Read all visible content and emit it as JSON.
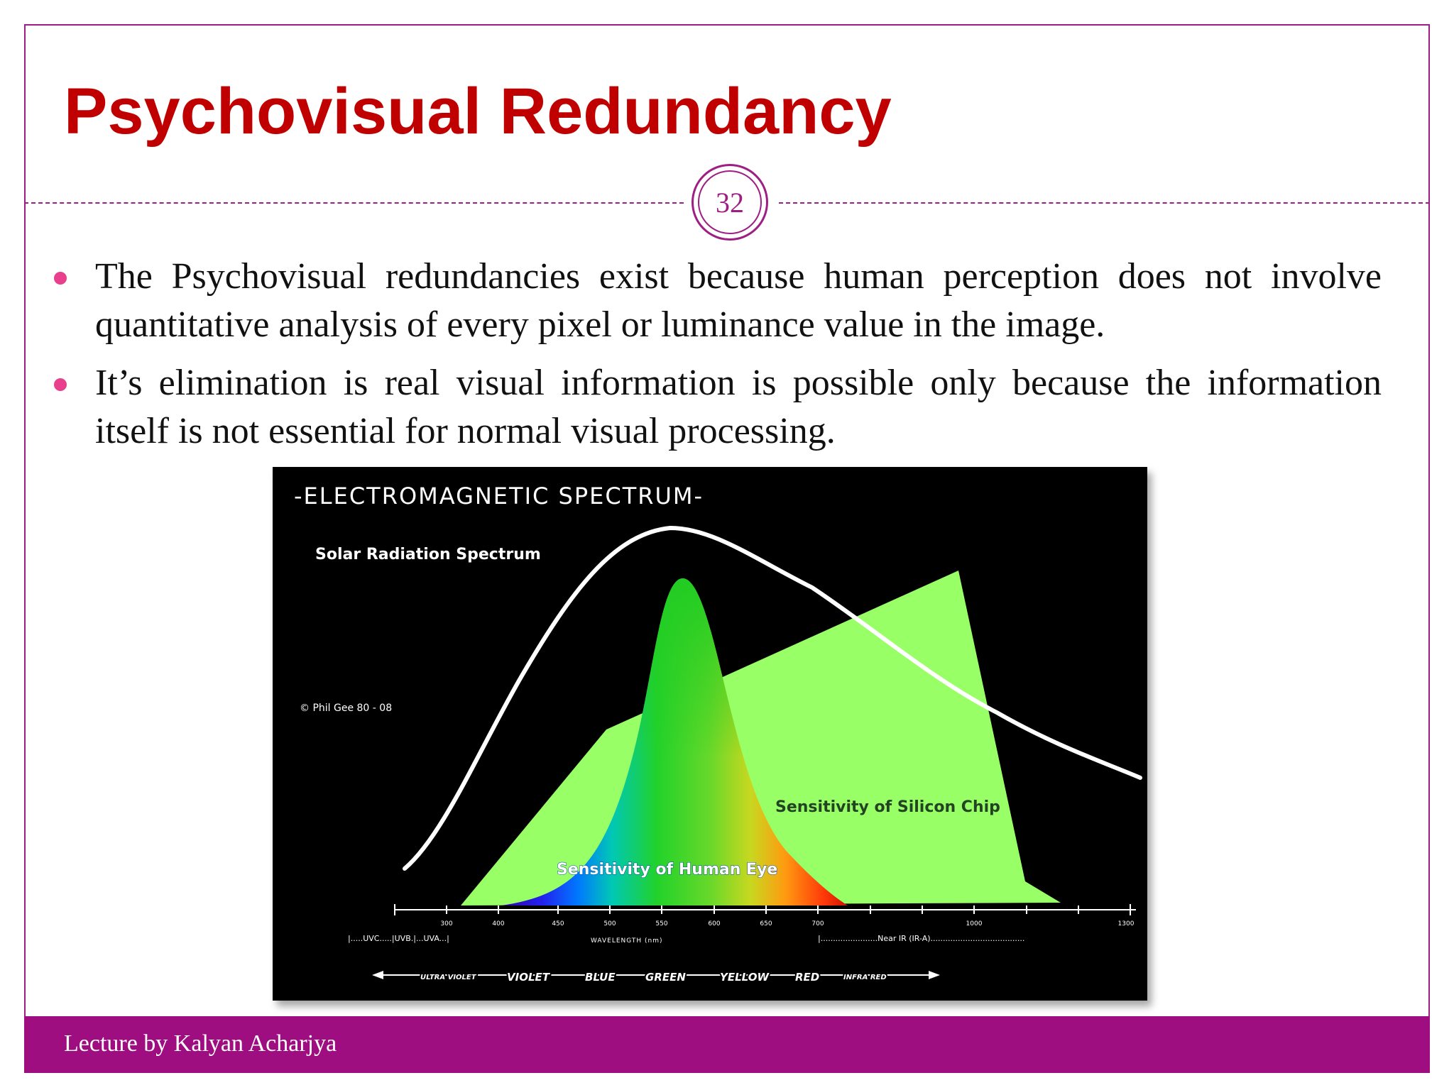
{
  "slide": {
    "title": "Psychovisual Redundancy",
    "page_number": "32",
    "bullets": [
      "The Psychovisual redundancies exist because human perception does not involve quantitative analysis of every pixel or luminance value in the image.",
      "It’s elimination is real visual information is possible only because the information itself is not essential for normal visual processing."
    ],
    "footer": "Lecture by Kalyan Acharjya"
  },
  "figure": {
    "title": "-ELECTROMAGNETIC SPECTRUM-",
    "solar_label": "Solar Radiation Spectrum",
    "copyright": "© Phil Gee 80 - 08",
    "silicon_label": "Sensitivity of Silicon Chip",
    "eye_label": "Sensitivity of Human Eye",
    "tick_labels": [
      "300",
      "400",
      "450",
      "500",
      "550",
      "600",
      "650",
      "700",
      "1000",
      "1300"
    ],
    "axis_label": "WAVELENGTH (nm)",
    "uv_bands": "|.....UVC.....|UVB.|...UVA...|",
    "near_ir": "|.......................Near IR (IR-A)......................................",
    "color_bands": [
      "ULTRA VIOLET",
      "VIOLET",
      "BLUE",
      "GREEN",
      "YELLOW",
      "RED",
      "INFRA RED"
    ],
    "colors": {
      "background": "#000000",
      "solar_curve": "#ffffff",
      "silicon_fill": "#99ff66"
    }
  }
}
